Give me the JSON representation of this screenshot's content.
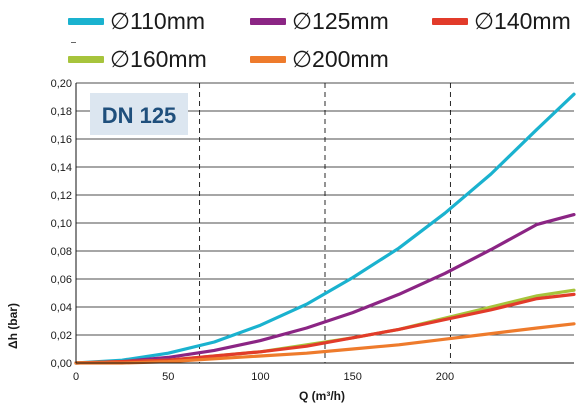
{
  "chart_data": {
    "type": "line",
    "title": "",
    "annotation": "DN 125",
    "xlabel": "Q (m³/h)",
    "ylabel": "Δh (bar)",
    "xlim": [
      0,
      270
    ],
    "ylim": [
      0,
      0.2
    ],
    "x_ticks": [
      "0",
      "50",
      "100",
      "150",
      "200"
    ],
    "y_ticks": [
      "0,00",
      "0,02",
      "0,04",
      "0,06",
      "0,08",
      "0,10",
      "0,12",
      "0,14",
      "0,16",
      "0,18",
      "0,20"
    ],
    "grid": {
      "horizontal": "solid",
      "vertical": "dashed",
      "vertical_at": [
        67,
        135,
        203
      ]
    },
    "legend_position": "top",
    "x": [
      0,
      25,
      50,
      75,
      100,
      125,
      150,
      175,
      200,
      225,
      250,
      270
    ],
    "series": [
      {
        "name": "∅110mm",
        "color": "#1ab2cf",
        "values": [
          0.0,
          0.002,
          0.007,
          0.015,
          0.027,
          0.042,
          0.061,
          0.082,
          0.107,
          0.135,
          0.167,
          0.192
        ]
      },
      {
        "name": "∅125mm",
        "color": "#8b2584",
        "values": [
          0.0,
          0.001,
          0.004,
          0.009,
          0.016,
          0.025,
          0.036,
          0.049,
          0.064,
          0.081,
          0.099,
          0.106
        ]
      },
      {
        "name": "∅140mm",
        "color": "#e23b2a",
        "values": [
          0.0,
          0.001,
          0.002,
          0.005,
          0.008,
          0.012,
          0.018,
          0.024,
          0.031,
          0.038,
          0.046,
          0.049
        ]
      },
      {
        "name": "∅160mm",
        "color": "#a7c43c",
        "values": [
          0.0,
          0.001,
          0.002,
          0.005,
          0.008,
          0.013,
          0.018,
          0.024,
          0.032,
          0.04,
          0.048,
          0.052
        ]
      },
      {
        "name": "∅200mm",
        "color": "#ee7b2c",
        "values": [
          0.0,
          0.0,
          0.001,
          0.003,
          0.005,
          0.007,
          0.01,
          0.013,
          0.017,
          0.021,
          0.025,
          0.028
        ]
      }
    ]
  }
}
